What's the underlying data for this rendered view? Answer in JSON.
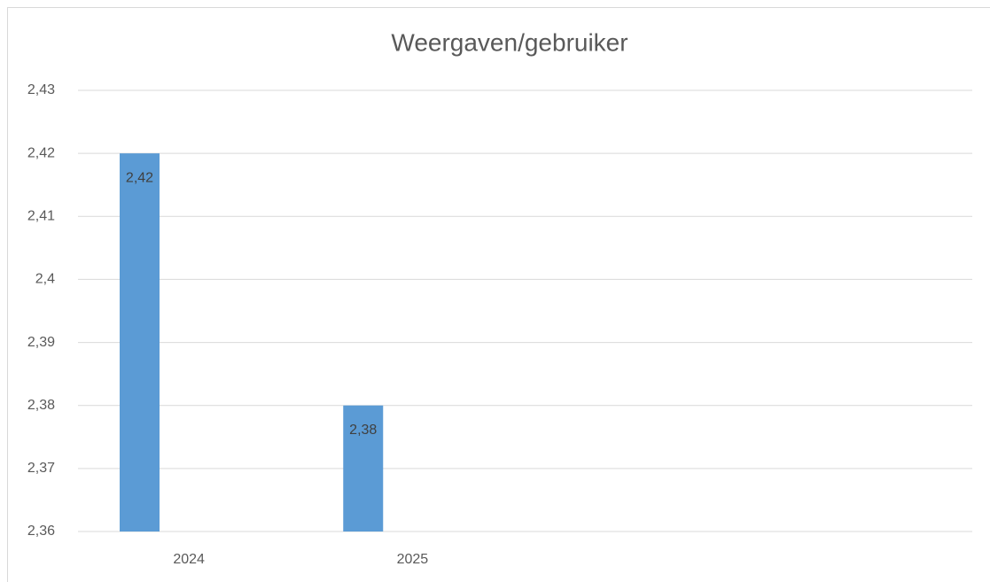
{
  "chart_data": {
    "type": "bar",
    "title": "Weergaven/gebruiker",
    "categories": [
      "2024",
      "2025",
      null,
      null
    ],
    "values": [
      2.42,
      2.38,
      null,
      null
    ],
    "value_labels": [
      "2,42",
      "2,38",
      null,
      null
    ],
    "color": "#5b9bd5",
    "ylim": [
      2.36,
      2.43
    ],
    "yticks": [
      {
        "value": 2.36,
        "label": "2,36"
      },
      {
        "value": 2.37,
        "label": "2,37"
      },
      {
        "value": 2.38,
        "label": "2,38"
      },
      {
        "value": 2.39,
        "label": "2,39"
      },
      {
        "value": 2.4,
        "label": "2,4"
      },
      {
        "value": 2.41,
        "label": "2,41"
      },
      {
        "value": 2.42,
        "label": "2,42"
      },
      {
        "value": 2.43,
        "label": "2,43"
      }
    ],
    "grid": true
  }
}
